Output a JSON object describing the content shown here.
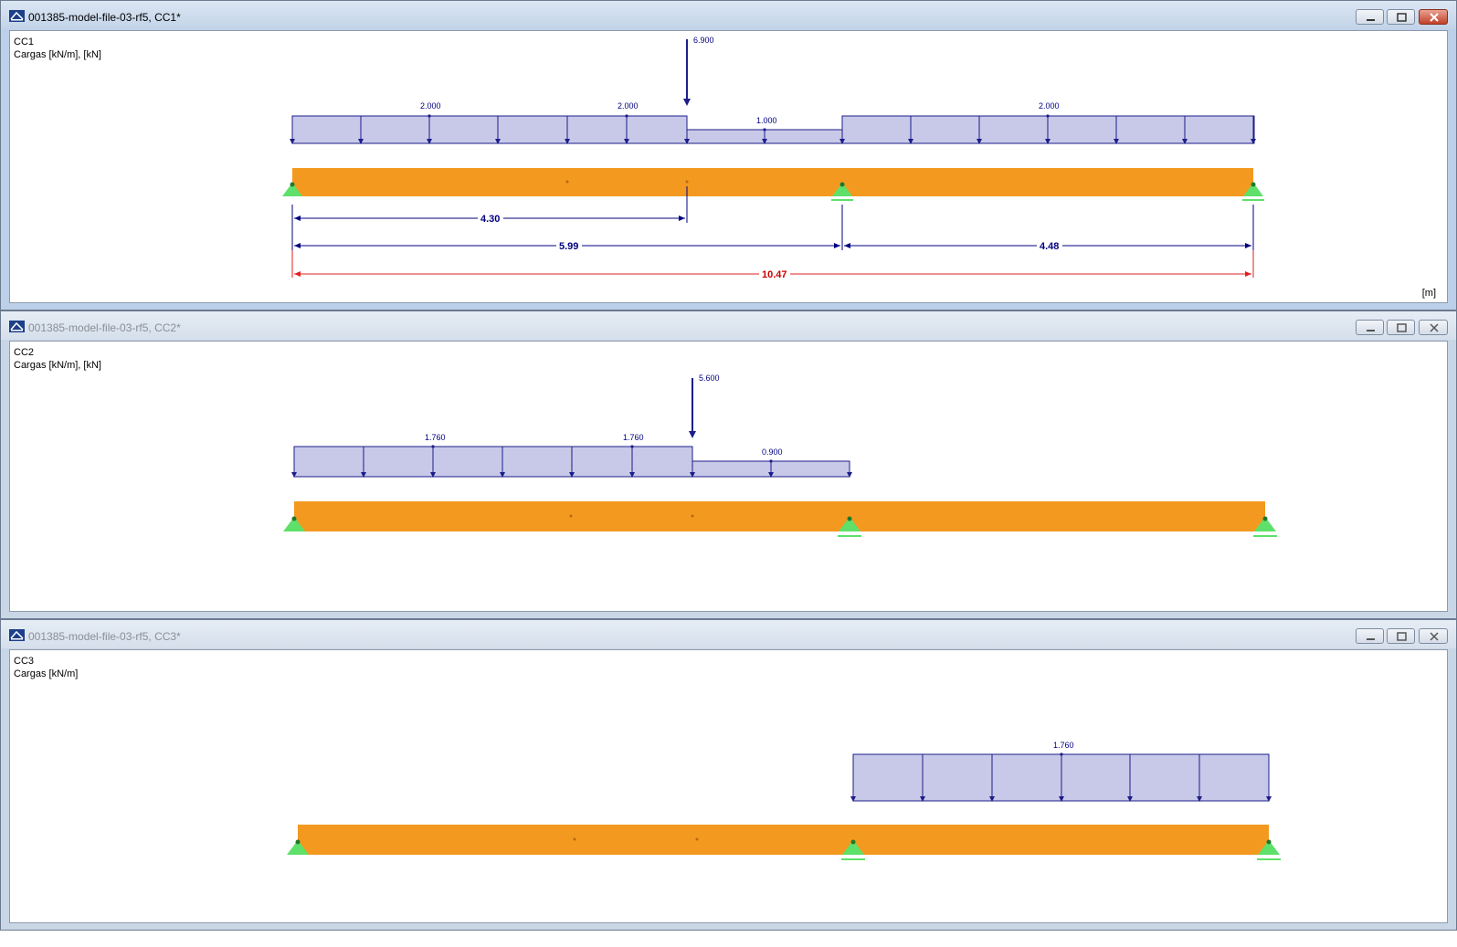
{
  "colors": {
    "load_fill": "#c8c9e8",
    "load_stroke": "#1d1d8a",
    "beam": "#f4991f",
    "support": "#5ee06a",
    "dim": "#000080",
    "dim_total": "#e02020"
  },
  "windows": [
    {
      "title": "001385-model-file-03-rf5, CC1*",
      "case": "CC1",
      "subtitle": "Cargas [kN/m], [kN]",
      "unit": "[m]",
      "point_load": "6.900",
      "udl_labels": [
        "2.000",
        "2.000",
        "1.000",
        "2.000"
      ],
      "dimensions": {
        "d1": "4.30",
        "d2": "5.99",
        "d3": "4.48",
        "total": "10.47"
      }
    },
    {
      "title": "001385-model-file-03-rf5, CC2*",
      "case": "CC2",
      "subtitle": "Cargas [kN/m], [kN]",
      "point_load": "5.600",
      "udl_labels": [
        "1.760",
        "1.760",
        "0.900"
      ]
    },
    {
      "title": "001385-model-file-03-rf5, CC3*",
      "case": "CC3",
      "subtitle": "Cargas [kN/m]",
      "udl_labels": [
        "1.760"
      ]
    }
  ]
}
